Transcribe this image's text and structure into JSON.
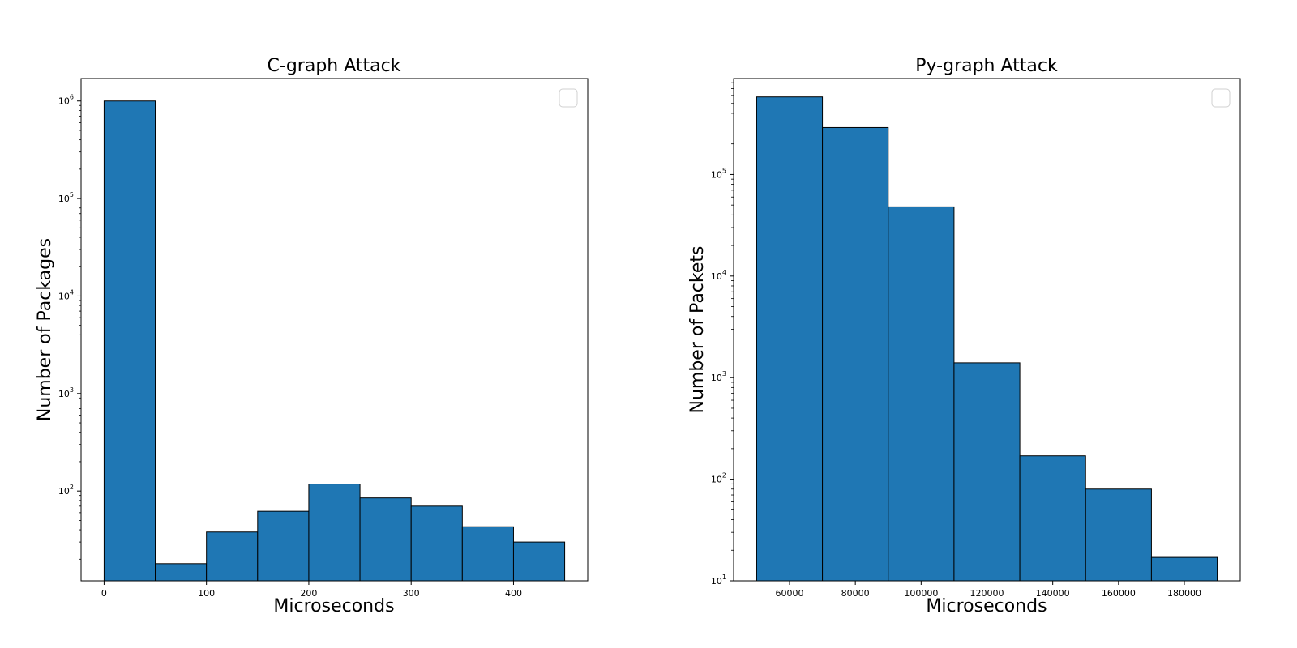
{
  "chart_data": [
    {
      "type": "bar",
      "title": "C-graph Attack",
      "xlabel": "Microseconds",
      "ylabel": "Number of Packages",
      "yscale": "log",
      "xlim": [
        -22.5,
        472.5
      ],
      "ylim": [
        12,
        1700000
      ],
      "bin_edges": [
        0,
        50,
        100,
        150,
        200,
        250,
        300,
        350,
        400,
        450
      ],
      "values": [
        1000000,
        18,
        38,
        62,
        118,
        85,
        70,
        43,
        30
      ],
      "xticks": [
        0,
        100,
        200,
        300,
        400
      ],
      "xtick_labels": [
        "0",
        "100",
        "200",
        "300",
        "400"
      ],
      "yticks": [
        100,
        1000,
        10000,
        100000,
        1000000
      ],
      "ytick_labels": [
        {
          "base": "10",
          "exp": "2"
        },
        {
          "base": "10",
          "exp": "3"
        },
        {
          "base": "10",
          "exp": "4"
        },
        {
          "base": "10",
          "exp": "5"
        },
        {
          "base": "10",
          "exp": "6"
        }
      ],
      "bar_color": "#1f77b4",
      "edge_color": "#000000",
      "legend": "upper right (empty)",
      "grid": false
    },
    {
      "type": "bar",
      "title": "Py-graph Attack",
      "xlabel": "Microseconds",
      "ylabel": "Number of Packets",
      "yscale": "log",
      "xlim": [
        43000,
        197000
      ],
      "ylim": [
        10,
        880000
      ],
      "bin_edges": [
        50000,
        70000,
        90000,
        110000,
        130000,
        150000,
        170000,
        190000
      ],
      "values": [
        580000,
        290000,
        48000,
        1400,
        170,
        80,
        17
      ],
      "xticks": [
        60000,
        80000,
        100000,
        120000,
        140000,
        160000,
        180000
      ],
      "xtick_labels": [
        "60000",
        "80000",
        "100000",
        "120000",
        "140000",
        "160000",
        "180000"
      ],
      "yticks": [
        10,
        100,
        1000,
        10000,
        100000
      ],
      "ytick_labels": [
        {
          "base": "10",
          "exp": "1"
        },
        {
          "base": "10",
          "exp": "2"
        },
        {
          "base": "10",
          "exp": "3"
        },
        {
          "base": "10",
          "exp": "4"
        },
        {
          "base": "10",
          "exp": "5"
        }
      ],
      "bar_color": "#1f77b4",
      "edge_color": "#000000",
      "legend": "upper right (empty)",
      "grid": false
    }
  ]
}
